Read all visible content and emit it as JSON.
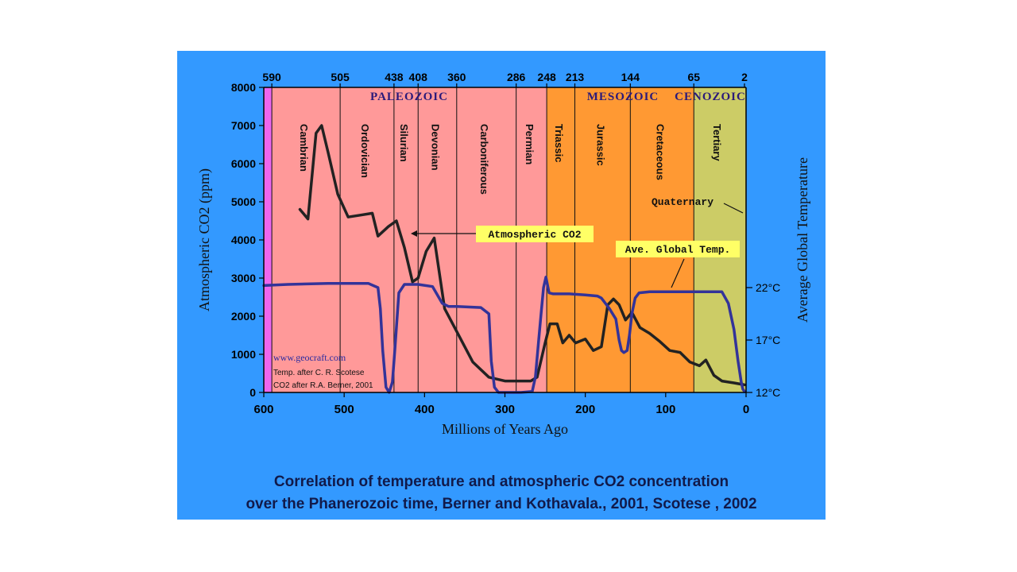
{
  "colors": {
    "background": "#3399ff",
    "paleozoic_fill": "#ff9999",
    "mesozoic_fill": "#ff9933",
    "cenozoic_fill": "#cccc66",
    "pre_cambrian_fill": "#ee66ee",
    "co2_line": "#222222",
    "temp_line": "#333399",
    "era_label": "#2b1a7a",
    "callout_fill": "#ffff66"
  },
  "chart_data": {
    "type": "line",
    "xlabel": "Millions of Years Ago",
    "ylabel": "Atmospheric CO2 (ppm)",
    "y2label": "Average Global Temperature",
    "xlim": [
      600,
      0
    ],
    "ylim": [
      0,
      8000
    ],
    "x_ticks": [
      600,
      500,
      400,
      300,
      200,
      100,
      0
    ],
    "y_ticks": [
      0,
      1000,
      2000,
      3000,
      4000,
      5000,
      6000,
      7000,
      8000
    ],
    "y2_ticks": [
      "12°C",
      "17°C",
      "22°C"
    ],
    "y2_values": [
      12,
      17,
      22
    ],
    "top_ticks": [
      590,
      505,
      438,
      408,
      360,
      286,
      248,
      213,
      144,
      65,
      2
    ],
    "eras": [
      {
        "name": "PALEOZOIC",
        "start": 590,
        "end": 248
      },
      {
        "name": "MESOZOIC",
        "start": 248,
        "end": 65
      },
      {
        "name": "CENOZOIC",
        "start": 65,
        "end": 0
      }
    ],
    "periods": [
      {
        "name": "Cambrian",
        "start": 590,
        "end": 505
      },
      {
        "name": "Ordovician",
        "start": 505,
        "end": 438
      },
      {
        "name": "Silurian",
        "start": 438,
        "end": 408
      },
      {
        "name": "Devonian",
        "start": 408,
        "end": 360
      },
      {
        "name": "Carboniferous",
        "start": 360,
        "end": 286
      },
      {
        "name": "Permian",
        "start": 286,
        "end": 248
      },
      {
        "name": "Triassic",
        "start": 248,
        "end": 213
      },
      {
        "name": "Jurassic",
        "start": 213,
        "end": 144
      },
      {
        "name": "Cretaceous",
        "start": 144,
        "end": 65
      },
      {
        "name": "Tertiary",
        "start": 65,
        "end": 2
      }
    ],
    "quaternary_label": "Quaternary",
    "series": [
      {
        "name": "Atmospheric CO2",
        "axis": "left",
        "x": [
          555,
          545,
          535,
          528,
          520,
          508,
          495,
          480,
          465,
          458,
          445,
          435,
          425,
          415,
          408,
          398,
          388,
          375,
          360,
          340,
          320,
          300,
          280,
          268,
          260,
          250,
          244,
          235,
          228,
          220,
          212,
          200,
          190,
          180,
          172,
          165,
          158,
          150,
          142,
          132,
          120,
          108,
          95,
          82,
          70,
          58,
          50,
          40,
          30,
          15,
          2
        ],
        "y": [
          4800,
          4550,
          6800,
          7000,
          6300,
          5200,
          4600,
          4650,
          4700,
          4100,
          4350,
          4500,
          3800,
          2900,
          3000,
          3700,
          4050,
          2200,
          1600,
          800,
          400,
          300,
          300,
          300,
          400,
          1300,
          1800,
          1800,
          1300,
          1500,
          1300,
          1400,
          1100,
          1200,
          2300,
          2450,
          2300,
          1900,
          2100,
          1700,
          1550,
          1350,
          1100,
          1050,
          800,
          700,
          850,
          450,
          300,
          250,
          200
        ]
      },
      {
        "name": "Ave. Global Temp.",
        "axis": "right",
        "x": [
          600,
          570,
          520,
          470,
          458,
          455,
          452,
          448,
          444,
          440,
          437,
          432,
          425,
          408,
          390,
          378,
          370,
          360,
          330,
          320,
          317,
          313,
          308,
          280,
          266,
          262,
          258,
          255,
          252,
          249,
          245,
          240,
          220,
          200,
          185,
          180,
          170,
          162,
          158,
          155,
          152,
          148,
          145,
          142,
          138,
          133,
          120,
          100,
          85,
          30,
          22,
          15,
          10,
          6,
          4,
          2
        ],
        "y": [
          22.2,
          22.3,
          22.4,
          22.4,
          22.0,
          20.0,
          16.0,
          12.5,
          12.0,
          13.0,
          16.0,
          21.5,
          22.3,
          22.3,
          22.1,
          20.5,
          20.2,
          20.2,
          20.1,
          19.5,
          15.0,
          12.5,
          12.0,
          12.0,
          12.1,
          13.5,
          17.0,
          19.5,
          22.0,
          23.0,
          21.5,
          21.4,
          21.4,
          21.3,
          21.2,
          21.0,
          20.0,
          19.0,
          17.0,
          16.0,
          15.8,
          16.0,
          17.5,
          19.5,
          21.0,
          21.5,
          21.6,
          21.6,
          21.6,
          21.6,
          20.5,
          18.0,
          15.0,
          13.0,
          12.3,
          12.1
        ]
      }
    ],
    "callouts": {
      "co2": "Atmospheric CO2",
      "temp": "Ave. Global Temp."
    },
    "annotations": {
      "website": "www.geocraft.com",
      "credit1": "Temp. after C. R. Scotese",
      "credit2": "CO2 after R.A. Berner, 2001"
    }
  },
  "caption": {
    "line1": "Correlation of temperature and atmospheric CO2 concentration",
    "line2": "over the Phanerozoic time, Berner and Kothavala., 2001, Scotese , 2002"
  }
}
